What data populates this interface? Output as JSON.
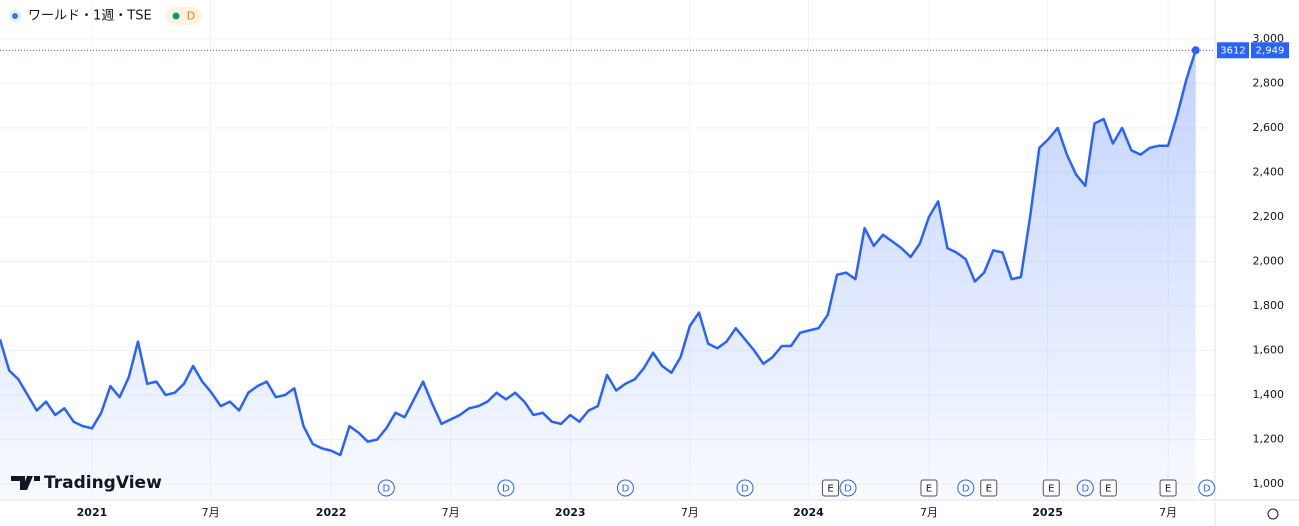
{
  "header": {
    "title": "ワールド・1週・TSE",
    "badge": "D"
  },
  "chart_data": {
    "type": "line",
    "color": "#2962ff",
    "values": [
      1650,
      1510,
      1470,
      1400,
      1330,
      1370,
      1310,
      1340,
      1280,
      1260,
      1250,
      1320,
      1440,
      1390,
      1480,
      1640,
      1450,
      1460,
      1400,
      1410,
      1450,
      1530,
      1460,
      1410,
      1350,
      1370,
      1330,
      1410,
      1440,
      1460,
      1390,
      1400,
      1430,
      1260,
      1180,
      1160,
      1150,
      1130,
      1260,
      1230,
      1190,
      1200,
      1250,
      1320,
      1300,
      1380,
      1460,
      1360,
      1270,
      1290,
      1310,
      1340,
      1350,
      1370,
      1410,
      1380,
      1410,
      1370,
      1310,
      1320,
      1280,
      1270,
      1310,
      1280,
      1330,
      1350,
      1490,
      1420,
      1450,
      1470,
      1520,
      1590,
      1530,
      1500,
      1570,
      1710,
      1770,
      1630,
      1610,
      1640,
      1700,
      1650,
      1600,
      1540,
      1570,
      1620,
      1620,
      1680,
      1690,
      1700,
      1760,
      1940,
      1950,
      1920,
      2150,
      2070,
      2120,
      2090,
      2060,
      2020,
      2080,
      2200,
      2270,
      2060,
      2040,
      2010,
      1910,
      1950,
      2050,
      2040,
      1920,
      1930,
      2200,
      2510,
      2550,
      2600,
      2480,
      2390,
      2340,
      2620,
      2640,
      2530,
      2600,
      2500,
      2480,
      2510,
      2520,
      2520,
      2660,
      2820,
      2949
    ],
    "xlim": [
      0,
      132.1
    ],
    "xticks": [
      {
        "value": 10,
        "label": "2021"
      },
      {
        "value": 22.9,
        "label": "7月"
      },
      {
        "value": 36,
        "label": "2022"
      },
      {
        "value": 49,
        "label": "7月"
      },
      {
        "value": 62,
        "label": "2023"
      },
      {
        "value": 75,
        "label": "7月"
      },
      {
        "value": 87.9,
        "label": "2024"
      },
      {
        "value": 101,
        "label": "7月"
      },
      {
        "value": 113.9,
        "label": "2025"
      },
      {
        "value": 127,
        "label": "7月"
      }
    ],
    "ylim": [
      928,
      3040
    ],
    "yticks": [
      {
        "value": 1000,
        "label": "1,000"
      },
      {
        "value": 1200,
        "label": "1,200"
      },
      {
        "value": 1400,
        "label": "1,400"
      },
      {
        "value": 1600,
        "label": "1,600"
      },
      {
        "value": 1800,
        "label": "1,800"
      },
      {
        "value": 2000,
        "label": "2,000"
      },
      {
        "value": 2200,
        "label": "2,200"
      },
      {
        "value": 2400,
        "label": "2,400"
      },
      {
        "value": 2600,
        "label": "2,600"
      },
      {
        "value": 2800,
        "label": "2,800"
      },
      {
        "value": 3000,
        "label": "3,000"
      }
    ],
    "grid": true,
    "symbol_code": "3612",
    "price_tag": "2,949",
    "events": [
      {
        "x": 42,
        "label": "D"
      },
      {
        "x": 55,
        "label": "D"
      },
      {
        "x": 68,
        "label": "D"
      },
      {
        "x": 81,
        "label": "D"
      },
      {
        "x": 90.3,
        "label": "E"
      },
      {
        "x": 92.2,
        "label": "D"
      },
      {
        "x": 101,
        "label": "E"
      },
      {
        "x": 105,
        "label": "D"
      },
      {
        "x": 107.5,
        "label": "E"
      },
      {
        "x": 114.3,
        "label": "E"
      },
      {
        "x": 118,
        "label": "D"
      },
      {
        "x": 120.5,
        "label": "E"
      },
      {
        "x": 127,
        "label": "E"
      },
      {
        "x": 131.2,
        "label": "D"
      }
    ],
    "brand": "TradingView"
  }
}
